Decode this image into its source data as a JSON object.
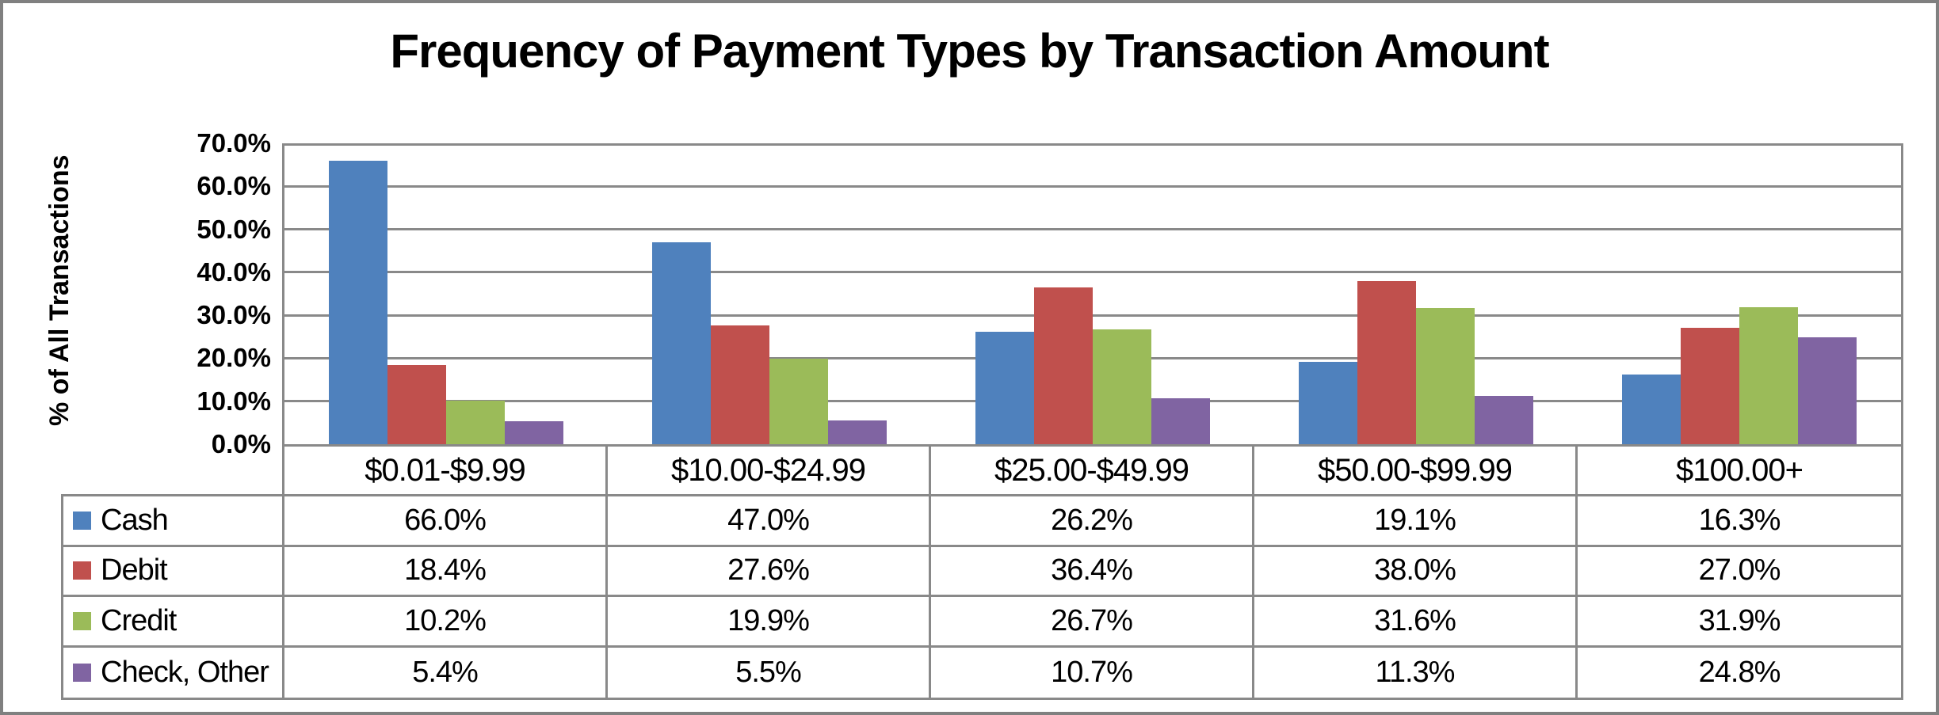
{
  "title": "Frequency of Payment Types by Transaction Amount",
  "y_axis": {
    "label": "% of All Transactions",
    "ticks": [
      "0.0%",
      "10.0%",
      "20.0%",
      "30.0%",
      "40.0%",
      "50.0%",
      "60.0%",
      "70.0%"
    ]
  },
  "chart_data": {
    "type": "bar",
    "title": "Frequency of Payment Types by Transaction Amount",
    "xlabel": "",
    "ylabel": "% of All Transactions",
    "ylim": [
      0,
      70
    ],
    "y_tick_step": 10,
    "grid": true,
    "legend_position": "table-left-column",
    "categories": [
      "$0.01-$9.99",
      "$10.00-$24.99",
      "$25.00-$49.99",
      "$50.00-$99.99",
      "$100.00+"
    ],
    "series": [
      {
        "name": "Cash",
        "color": "#4F81BD",
        "values": [
          66.0,
          47.0,
          26.2,
          19.1,
          16.3
        ],
        "display": [
          "66.0%",
          "47.0%",
          "26.2%",
          "19.1%",
          "16.3%"
        ]
      },
      {
        "name": "Debit",
        "color": "#C0504D",
        "values": [
          18.4,
          27.6,
          36.4,
          38.0,
          27.0
        ],
        "display": [
          "18.4%",
          "27.6%",
          "36.4%",
          "38.0%",
          "27.0%"
        ]
      },
      {
        "name": "Credit",
        "color": "#9BBB59",
        "values": [
          10.2,
          19.9,
          26.7,
          31.6,
          31.9
        ],
        "display": [
          "10.2%",
          "19.9%",
          "26.7%",
          "31.6%",
          "31.9%"
        ]
      },
      {
        "name": "Check, Other",
        "color": "#8064A2",
        "values": [
          5.4,
          5.5,
          10.7,
          11.3,
          24.8
        ],
        "display": [
          "5.4%",
          "5.5%",
          "10.7%",
          "11.3%",
          "24.8%"
        ]
      }
    ],
    "colors": {
      "gridline": "#898989",
      "frame_border": "#808080",
      "text": "#000000"
    }
  }
}
